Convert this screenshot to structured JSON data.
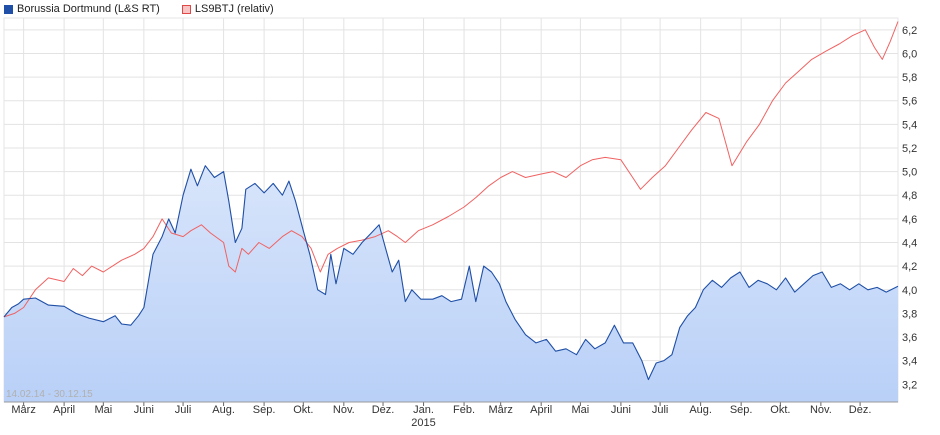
{
  "legend": [
    {
      "label": "Borussia Dortmund (L&S RT)",
      "color": "#1f4fa6"
    },
    {
      "label": "LS9BTJ (relativ)",
      "color": "#f08080"
    }
  ],
  "range_label": "14.02.14 - 30.12.15",
  "chart_data": {
    "type": "area",
    "title": "",
    "xlabel": "",
    "ylabel": "",
    "xlim": [
      "2014-02-14",
      "2015-12-30"
    ],
    "ylim": [
      3.05,
      6.3
    ],
    "y_ticks": [
      3.2,
      3.4,
      3.6,
      3.8,
      4.0,
      4.2,
      4.4,
      4.6,
      4.8,
      5.0,
      5.2,
      5.4,
      5.6,
      5.8,
      6.0,
      6.2
    ],
    "y_tick_labels": [
      "3,2",
      "3,4",
      "3,6",
      "3,8",
      "4,0",
      "4,2",
      "4,4",
      "4,6",
      "4,8",
      "5,0",
      "5,2",
      "5,4",
      "5,6",
      "5,8",
      "6,0",
      "6,2"
    ],
    "x_ticks": [
      {
        "date": "2014-03-01",
        "label": "März"
      },
      {
        "date": "2014-04-01",
        "label": "April"
      },
      {
        "date": "2014-05-01",
        "label": "Mai"
      },
      {
        "date": "2014-06-01",
        "label": "Juni"
      },
      {
        "date": "2014-07-01",
        "label": "Juli"
      },
      {
        "date": "2014-08-01",
        "label": "Aug."
      },
      {
        "date": "2014-09-01",
        "label": "Sep."
      },
      {
        "date": "2014-10-01",
        "label": "Okt."
      },
      {
        "date": "2014-11-01",
        "label": "Nov."
      },
      {
        "date": "2014-12-01",
        "label": "Dez."
      },
      {
        "date": "2015-01-01",
        "label": "Jan.",
        "sublabel": "2015"
      },
      {
        "date": "2015-02-01",
        "label": "Feb."
      },
      {
        "date": "2015-03-01",
        "label": "März"
      },
      {
        "date": "2015-04-01",
        "label": "April"
      },
      {
        "date": "2015-05-01",
        "label": "Mai"
      },
      {
        "date": "2015-06-01",
        "label": "Juni"
      },
      {
        "date": "2015-07-01",
        "label": "Juli"
      },
      {
        "date": "2015-08-01",
        "label": "Aug."
      },
      {
        "date": "2015-09-01",
        "label": "Sep."
      },
      {
        "date": "2015-10-01",
        "label": "Okt."
      },
      {
        "date": "2015-11-01",
        "label": "Nov."
      },
      {
        "date": "2015-12-01",
        "label": "Dez."
      }
    ],
    "grid": true,
    "legend_position": "top-left",
    "series": [
      {
        "name": "Borussia Dortmund (L&S RT)",
        "color": "#1f4fa6",
        "fill_top": "#d8e5fb",
        "fill_bottom": "#b9d0f7",
        "points": [
          [
            "2014-02-14",
            3.77
          ],
          [
            "2014-02-20",
            3.85
          ],
          [
            "2014-02-25",
            3.88
          ],
          [
            "2014-03-01",
            3.92
          ],
          [
            "2014-03-10",
            3.93
          ],
          [
            "2014-03-20",
            3.87
          ],
          [
            "2014-04-01",
            3.86
          ],
          [
            "2014-04-10",
            3.8
          ],
          [
            "2014-04-20",
            3.76
          ],
          [
            "2014-05-01",
            3.73
          ],
          [
            "2014-05-10",
            3.78
          ],
          [
            "2014-05-15",
            3.71
          ],
          [
            "2014-05-22",
            3.7
          ],
          [
            "2014-05-28",
            3.78
          ],
          [
            "2014-06-01",
            3.85
          ],
          [
            "2014-06-08",
            4.3
          ],
          [
            "2014-06-15",
            4.45
          ],
          [
            "2014-06-20",
            4.6
          ],
          [
            "2014-06-25",
            4.48
          ],
          [
            "2014-07-01",
            4.8
          ],
          [
            "2014-07-07",
            5.02
          ],
          [
            "2014-07-12",
            4.88
          ],
          [
            "2014-07-18",
            5.05
          ],
          [
            "2014-07-25",
            4.95
          ],
          [
            "2014-08-01",
            5.0
          ],
          [
            "2014-08-05",
            4.75
          ],
          [
            "2014-08-10",
            4.4
          ],
          [
            "2014-08-15",
            4.52
          ],
          [
            "2014-08-18",
            4.85
          ],
          [
            "2014-08-25",
            4.9
          ],
          [
            "2014-09-01",
            4.82
          ],
          [
            "2014-09-08",
            4.9
          ],
          [
            "2014-09-15",
            4.8
          ],
          [
            "2014-09-20",
            4.92
          ],
          [
            "2014-09-25",
            4.75
          ],
          [
            "2014-10-01",
            4.5
          ],
          [
            "2014-10-06",
            4.3
          ],
          [
            "2014-10-12",
            4.0
          ],
          [
            "2014-10-18",
            3.96
          ],
          [
            "2014-10-22",
            4.3
          ],
          [
            "2014-10-26",
            4.05
          ],
          [
            "2014-11-01",
            4.35
          ],
          [
            "2014-11-08",
            4.3
          ],
          [
            "2014-11-15",
            4.4
          ],
          [
            "2014-11-22",
            4.48
          ],
          [
            "2014-11-28",
            4.55
          ],
          [
            "2014-12-03",
            4.35
          ],
          [
            "2014-12-08",
            4.15
          ],
          [
            "2014-12-13",
            4.25
          ],
          [
            "2014-12-18",
            3.9
          ],
          [
            "2014-12-23",
            4.0
          ],
          [
            "2014-12-30",
            3.92
          ],
          [
            "2015-01-08",
            3.92
          ],
          [
            "2015-01-15",
            3.95
          ],
          [
            "2015-01-22",
            3.9
          ],
          [
            "2015-01-30",
            3.92
          ],
          [
            "2015-02-05",
            4.2
          ],
          [
            "2015-02-10",
            3.9
          ],
          [
            "2015-02-16",
            4.2
          ],
          [
            "2015-02-22",
            4.15
          ],
          [
            "2015-02-28",
            4.05
          ],
          [
            "2015-03-05",
            3.9
          ],
          [
            "2015-03-12",
            3.75
          ],
          [
            "2015-03-20",
            3.62
          ],
          [
            "2015-03-28",
            3.55
          ],
          [
            "2015-04-05",
            3.58
          ],
          [
            "2015-04-12",
            3.48
          ],
          [
            "2015-04-20",
            3.5
          ],
          [
            "2015-04-28",
            3.45
          ],
          [
            "2015-05-05",
            3.58
          ],
          [
            "2015-05-12",
            3.5
          ],
          [
            "2015-05-20",
            3.55
          ],
          [
            "2015-05-27",
            3.7
          ],
          [
            "2015-06-03",
            3.55
          ],
          [
            "2015-06-10",
            3.55
          ],
          [
            "2015-06-17",
            3.4
          ],
          [
            "2015-06-22",
            3.24
          ],
          [
            "2015-06-28",
            3.38
          ],
          [
            "2015-07-04",
            3.4
          ],
          [
            "2015-07-10",
            3.45
          ],
          [
            "2015-07-16",
            3.68
          ],
          [
            "2015-07-22",
            3.78
          ],
          [
            "2015-07-28",
            3.85
          ],
          [
            "2015-08-03",
            4.0
          ],
          [
            "2015-08-10",
            4.08
          ],
          [
            "2015-08-17",
            4.02
          ],
          [
            "2015-08-24",
            4.1
          ],
          [
            "2015-08-31",
            4.15
          ],
          [
            "2015-09-07",
            4.02
          ],
          [
            "2015-09-14",
            4.08
          ],
          [
            "2015-09-21",
            4.05
          ],
          [
            "2015-09-28",
            4.0
          ],
          [
            "2015-10-05",
            4.1
          ],
          [
            "2015-10-12",
            3.98
          ],
          [
            "2015-10-19",
            4.05
          ],
          [
            "2015-10-26",
            4.12
          ],
          [
            "2015-11-02",
            4.15
          ],
          [
            "2015-11-09",
            4.02
          ],
          [
            "2015-11-16",
            4.05
          ],
          [
            "2015-11-23",
            4.0
          ],
          [
            "2015-11-30",
            4.05
          ],
          [
            "2015-12-07",
            4.0
          ],
          [
            "2015-12-14",
            4.02
          ],
          [
            "2015-12-21",
            3.98
          ],
          [
            "2015-12-30",
            4.03
          ]
        ]
      },
      {
        "name": "LS9BTJ (relativ)",
        "color": "#f06262",
        "points": [
          [
            "2014-02-14",
            3.77
          ],
          [
            "2014-02-22",
            3.8
          ],
          [
            "2014-03-01",
            3.85
          ],
          [
            "2014-03-10",
            4.0
          ],
          [
            "2014-03-20",
            4.1
          ],
          [
            "2014-04-01",
            4.07
          ],
          [
            "2014-04-08",
            4.18
          ],
          [
            "2014-04-15",
            4.12
          ],
          [
            "2014-04-22",
            4.2
          ],
          [
            "2014-05-01",
            4.15
          ],
          [
            "2014-05-08",
            4.2
          ],
          [
            "2014-05-15",
            4.25
          ],
          [
            "2014-05-25",
            4.3
          ],
          [
            "2014-06-01",
            4.35
          ],
          [
            "2014-06-08",
            4.45
          ],
          [
            "2014-06-15",
            4.6
          ],
          [
            "2014-06-22",
            4.48
          ],
          [
            "2014-07-01",
            4.45
          ],
          [
            "2014-07-07",
            4.5
          ],
          [
            "2014-07-15",
            4.55
          ],
          [
            "2014-07-22",
            4.48
          ],
          [
            "2014-08-01",
            4.4
          ],
          [
            "2014-08-05",
            4.2
          ],
          [
            "2014-08-10",
            4.15
          ],
          [
            "2014-08-15",
            4.35
          ],
          [
            "2014-08-20",
            4.3
          ],
          [
            "2014-08-28",
            4.4
          ],
          [
            "2014-09-05",
            4.35
          ],
          [
            "2014-09-15",
            4.45
          ],
          [
            "2014-09-22",
            4.5
          ],
          [
            "2014-09-30",
            4.45
          ],
          [
            "2014-10-07",
            4.35
          ],
          [
            "2014-10-14",
            4.15
          ],
          [
            "2014-10-20",
            4.3
          ],
          [
            "2014-10-27",
            4.35
          ],
          [
            "2014-11-05",
            4.4
          ],
          [
            "2014-11-15",
            4.42
          ],
          [
            "2014-11-25",
            4.45
          ],
          [
            "2014-12-05",
            4.5
          ],
          [
            "2014-12-12",
            4.45
          ],
          [
            "2014-12-18",
            4.4
          ],
          [
            "2014-12-28",
            4.5
          ],
          [
            "2015-01-08",
            4.55
          ],
          [
            "2015-01-20",
            4.62
          ],
          [
            "2015-02-01",
            4.7
          ],
          [
            "2015-02-10",
            4.78
          ],
          [
            "2015-02-20",
            4.88
          ],
          [
            "2015-03-01",
            4.95
          ],
          [
            "2015-03-10",
            5.0
          ],
          [
            "2015-03-20",
            4.95
          ],
          [
            "2015-04-01",
            4.98
          ],
          [
            "2015-04-10",
            5.0
          ],
          [
            "2015-04-20",
            4.95
          ],
          [
            "2015-05-01",
            5.05
          ],
          [
            "2015-05-10",
            5.1
          ],
          [
            "2015-05-20",
            5.12
          ],
          [
            "2015-06-01",
            5.1
          ],
          [
            "2015-06-10",
            4.95
          ],
          [
            "2015-06-16",
            4.85
          ],
          [
            "2015-06-25",
            4.95
          ],
          [
            "2015-07-05",
            5.05
          ],
          [
            "2015-07-15",
            5.2
          ],
          [
            "2015-07-25",
            5.35
          ],
          [
            "2015-08-05",
            5.5
          ],
          [
            "2015-08-15",
            5.45
          ],
          [
            "2015-08-20",
            5.25
          ],
          [
            "2015-08-25",
            5.05
          ],
          [
            "2015-09-05",
            5.25
          ],
          [
            "2015-09-15",
            5.4
          ],
          [
            "2015-09-25",
            5.6
          ],
          [
            "2015-10-05",
            5.75
          ],
          [
            "2015-10-15",
            5.85
          ],
          [
            "2015-10-25",
            5.95
          ],
          [
            "2015-11-05",
            6.02
          ],
          [
            "2015-11-15",
            6.08
          ],
          [
            "2015-11-25",
            6.15
          ],
          [
            "2015-12-05",
            6.2
          ],
          [
            "2015-12-12",
            6.05
          ],
          [
            "2015-12-18",
            5.95
          ],
          [
            "2015-12-24",
            6.1
          ],
          [
            "2015-12-30",
            6.27
          ]
        ]
      }
    ]
  }
}
